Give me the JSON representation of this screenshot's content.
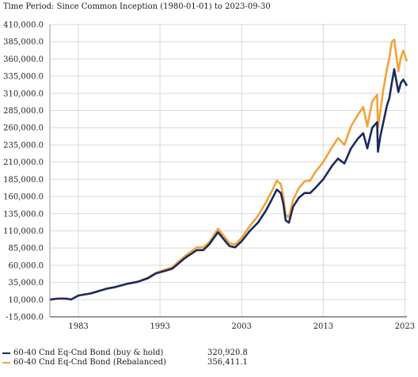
{
  "header": {
    "time_period": "Time Period: Since Common Inception (1980-01-01) to 2023-09-30"
  },
  "chart_data": {
    "type": "line",
    "title": "",
    "xlabel": "",
    "ylabel": "",
    "ylim": [
      -15000,
      410000
    ],
    "xlim": [
      1980.0,
      2023.75
    ],
    "grid": true,
    "legend_position": "bottom-left",
    "y_ticks": [
      410000,
      385000,
      360000,
      335000,
      310000,
      285000,
      260000,
      235000,
      210000,
      185000,
      160000,
      135000,
      110000,
      85000,
      60000,
      35000,
      10000,
      -15000
    ],
    "y_tick_labels": [
      "410,000.0",
      "385,000.0",
      "360,000.0",
      "335,000.0",
      "310,000.0",
      "285,000.0",
      "260,000.0",
      "235,000.0",
      "210,000.0",
      "185,000.0",
      "160,000.0",
      "135,000.0",
      "110,000.0",
      "85,000.0",
      "60,000.0",
      "35,000.0",
      "10,000.0",
      "-15,000.0"
    ],
    "x_ticks": [
      1983,
      1993,
      2003,
      2013,
      2023
    ],
    "x_tick_labels": [
      "1983",
      "1993",
      "2003",
      "2013",
      "2023"
    ],
    "series": [
      {
        "name": "60-40 Cnd Eq-Cnd Bond (buy & hold)",
        "final_value": "320,920.8",
        "color": "#1b2a5e",
        "x": [
          1980.0,
          1981.0,
          1982.0,
          1982.6,
          1983.5,
          1985.0,
          1987.0,
          1987.9,
          1989.5,
          1990.8,
          1992.0,
          1993.0,
          1994.2,
          1995.0,
          1996.5,
          1998.0,
          1998.8,
          1999.5,
          2000.6,
          2001.5,
          2002.0,
          2002.7,
          2003.5,
          2004.5,
          2005.5,
          2006.5,
          2007.3,
          2007.8,
          2008.3,
          2008.6,
          2008.9,
          2009.3,
          2009.8,
          2010.5,
          2011.2,
          2011.9,
          2012.5,
          2013.5,
          2014.6,
          2015.3,
          2016.1,
          2016.9,
          2017.8,
          2018.4,
          2018.9,
          2019.5,
          2020.1,
          2020.2,
          2020.5,
          2020.9,
          2021.3,
          2021.6,
          2021.9,
          2022.2,
          2022.7,
          2023.0,
          2023.3,
          2023.75
        ],
        "y": [
          10000,
          11500,
          11500,
          10200,
          16000,
          19000,
          26000,
          28000,
          33000,
          36000,
          41000,
          48000,
          52000,
          55000,
          70000,
          82000,
          82000,
          90000,
          108000,
          95000,
          88000,
          86000,
          95000,
          110000,
          122000,
          140000,
          158000,
          170000,
          165000,
          150000,
          125000,
          122000,
          145000,
          158000,
          165000,
          165000,
          172000,
          185000,
          205000,
          215000,
          208000,
          230000,
          245000,
          252000,
          230000,
          260000,
          268000,
          225000,
          248000,
          270000,
          292000,
          303000,
          325000,
          345000,
          312000,
          325000,
          330000,
          320920
        ]
      },
      {
        "name": "60-40 Cnd Eq-Cnd Bond (Rebalanced)",
        "final_value": "356,411.1",
        "color": "#f2a33a",
        "x": [
          1980.0,
          1981.0,
          1982.0,
          1982.6,
          1983.5,
          1985.0,
          1987.0,
          1987.9,
          1989.5,
          1990.8,
          1992.0,
          1993.0,
          1994.2,
          1995.0,
          1996.5,
          1998.0,
          1998.8,
          1999.5,
          2000.6,
          2001.5,
          2002.0,
          2002.7,
          2003.5,
          2004.5,
          2005.5,
          2006.5,
          2007.3,
          2007.8,
          2008.3,
          2008.6,
          2008.9,
          2009.3,
          2009.8,
          2010.5,
          2011.2,
          2011.9,
          2012.5,
          2013.5,
          2014.6,
          2015.3,
          2016.1,
          2016.9,
          2017.8,
          2018.4,
          2018.9,
          2019.5,
          2020.1,
          2020.2,
          2020.5,
          2020.9,
          2021.3,
          2021.6,
          2021.9,
          2022.2,
          2022.7,
          2023.0,
          2023.3,
          2023.75
        ],
        "y": [
          10000,
          11500,
          11500,
          10200,
          16000,
          19000,
          26000,
          28000,
          33000,
          36000,
          42000,
          49000,
          54000,
          57000,
          73000,
          86000,
          86000,
          93000,
          113000,
          100000,
          92000,
          90000,
          100000,
          117000,
          132000,
          152000,
          170000,
          183000,
          178000,
          160000,
          133000,
          130000,
          155000,
          172000,
          182000,
          183000,
          195000,
          210000,
          232000,
          245000,
          235000,
          262000,
          280000,
          290000,
          262000,
          298000,
          308000,
          260000,
          285000,
          318000,
          345000,
          362000,
          385000,
          388000,
          342000,
          362000,
          372000,
          356411
        ]
      }
    ]
  }
}
